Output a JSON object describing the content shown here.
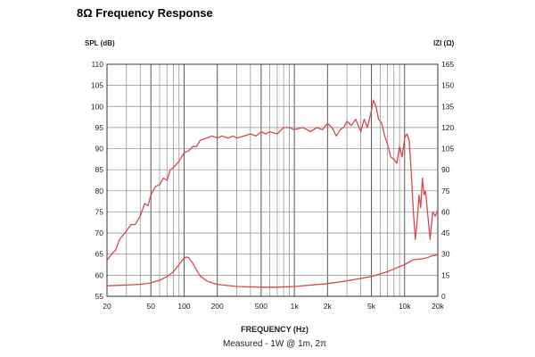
{
  "title": "8Ω Frequency Response",
  "chart_data": {
    "type": "line",
    "left_axis_label": "SPL (dB)",
    "right_axis_label": "IZI (Ω)",
    "xlabel": "FREQUENCY (Hz)",
    "caption": "Measured - 1W @ 1m, 2π",
    "x_scale": "log",
    "xlim": [
      20,
      20000
    ],
    "ylim_left": [
      55,
      110
    ],
    "ylim_right": [
      0,
      165
    ],
    "grid": true,
    "x_tick_labels": [
      {
        "value": 20,
        "label": "20"
      },
      {
        "value": 50,
        "label": "50"
      },
      {
        "value": 100,
        "label": "100"
      },
      {
        "value": 200,
        "label": "200"
      },
      {
        "value": 500,
        "label": "500"
      },
      {
        "value": 1000,
        "label": "1k"
      },
      {
        "value": 2000,
        "label": "2k"
      },
      {
        "value": 5000,
        "label": "5k"
      },
      {
        "value": 10000,
        "label": "10k"
      },
      {
        "value": 20000,
        "label": "20k"
      }
    ],
    "left_ticks": [
      55,
      60,
      65,
      70,
      75,
      80,
      85,
      90,
      95,
      100,
      105,
      110
    ],
    "right_ticks": [
      0,
      15,
      30,
      45,
      60,
      75,
      90,
      105,
      120,
      135,
      150,
      165
    ],
    "series": [
      {
        "axis": "left",
        "color": "#d9484f",
        "points": [
          [
            20,
            63.5
          ],
          [
            22,
            65
          ],
          [
            24,
            66
          ],
          [
            26,
            68.5
          ],
          [
            28,
            69.5
          ],
          [
            30,
            70.5
          ],
          [
            33,
            72
          ],
          [
            36,
            72
          ],
          [
            40,
            74
          ],
          [
            44,
            77
          ],
          [
            47,
            76.5
          ],
          [
            50,
            79
          ],
          [
            55,
            81
          ],
          [
            60,
            81.5
          ],
          [
            65,
            83
          ],
          [
            70,
            82.5
          ],
          [
            75,
            85
          ],
          [
            80,
            85.5
          ],
          [
            90,
            87
          ],
          [
            100,
            89
          ],
          [
            110,
            89.5
          ],
          [
            120,
            90.5
          ],
          [
            130,
            90.5
          ],
          [
            140,
            92
          ],
          [
            160,
            92.5
          ],
          [
            180,
            93
          ],
          [
            200,
            92.5
          ],
          [
            220,
            93
          ],
          [
            250,
            92.5
          ],
          [
            280,
            93
          ],
          [
            300,
            92.5
          ],
          [
            350,
            93
          ],
          [
            400,
            93.5
          ],
          [
            450,
            93
          ],
          [
            500,
            94
          ],
          [
            550,
            93.5
          ],
          [
            600,
            94
          ],
          [
            700,
            93.5
          ],
          [
            800,
            95
          ],
          [
            900,
            95
          ],
          [
            1000,
            94.5
          ],
          [
            1200,
            95
          ],
          [
            1400,
            94
          ],
          [
            1600,
            95
          ],
          [
            1800,
            94.5
          ],
          [
            2000,
            96
          ],
          [
            2200,
            95
          ],
          [
            2400,
            93
          ],
          [
            2600,
            94.5
          ],
          [
            2800,
            95
          ],
          [
            3000,
            96.5
          ],
          [
            3300,
            95.5
          ],
          [
            3600,
            97
          ],
          [
            4000,
            94
          ],
          [
            4300,
            97
          ],
          [
            4600,
            95
          ],
          [
            5000,
            99
          ],
          [
            5200,
            101.5
          ],
          [
            5500,
            100
          ],
          [
            5800,
            97
          ],
          [
            6200,
            96
          ],
          [
            6600,
            93
          ],
          [
            7000,
            91
          ],
          [
            7500,
            88
          ],
          [
            8000,
            87.5
          ],
          [
            8500,
            86.5
          ],
          [
            9000,
            90.5
          ],
          [
            9500,
            88
          ],
          [
            10000,
            92.5
          ],
          [
            10500,
            93.5
          ],
          [
            11000,
            92
          ],
          [
            11500,
            84
          ],
          [
            12000,
            75
          ],
          [
            12500,
            68.5
          ],
          [
            13000,
            73
          ],
          [
            13500,
            79
          ],
          [
            14000,
            76
          ],
          [
            14500,
            83
          ],
          [
            15000,
            79
          ],
          [
            15500,
            80
          ],
          [
            16000,
            76
          ],
          [
            17000,
            68.5
          ],
          [
            18000,
            75
          ],
          [
            19000,
            74
          ],
          [
            20000,
            75.5
          ]
        ]
      },
      {
        "axis": "right",
        "color": "#d9484f",
        "points": [
          [
            20,
            7.5
          ],
          [
            30,
            8
          ],
          [
            40,
            8.5
          ],
          [
            50,
            9.5
          ],
          [
            60,
            11.5
          ],
          [
            70,
            14
          ],
          [
            80,
            17.5
          ],
          [
            90,
            22.5
          ],
          [
            100,
            27
          ],
          [
            105,
            28
          ],
          [
            110,
            27.5
          ],
          [
            120,
            23.5
          ],
          [
            130,
            18.5
          ],
          [
            140,
            14.5
          ],
          [
            160,
            11
          ],
          [
            180,
            9.5
          ],
          [
            200,
            8.5
          ],
          [
            300,
            7
          ],
          [
            500,
            6.5
          ],
          [
            700,
            6.5
          ],
          [
            1000,
            7
          ],
          [
            2000,
            9
          ],
          [
            3000,
            11
          ],
          [
            5000,
            14
          ],
          [
            7000,
            17.5
          ],
          [
            8000,
            19.5
          ],
          [
            10000,
            22.5
          ],
          [
            12000,
            26
          ],
          [
            14000,
            26.5
          ],
          [
            16000,
            27.5
          ],
          [
            18000,
            29
          ],
          [
            20000,
            29.5
          ]
        ]
      }
    ]
  }
}
